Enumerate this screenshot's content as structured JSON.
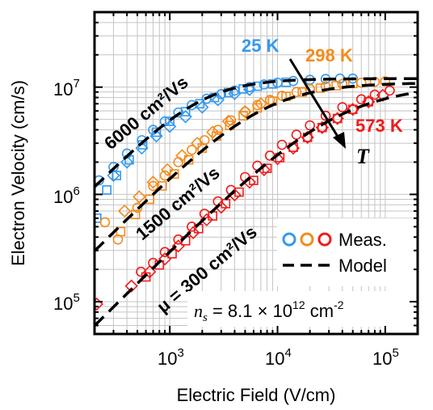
{
  "chart_data": {
    "type": "scatter",
    "x_scale": "log",
    "y_scale": "log",
    "xlim": [
      200,
      200000
    ],
    "ylim": [
      50000,
      50000000
    ],
    "xlabel": "Electric Field (V/cm)",
    "ylabel": "Electron Velocity (cm/s)",
    "x_ticks": [
      {
        "base": "10",
        "exp": "3",
        "value": 1000
      },
      {
        "base": "10",
        "exp": "4",
        "value": 10000
      },
      {
        "base": "10",
        "exp": "5",
        "value": 100000
      }
    ],
    "y_ticks": [
      {
        "base": "10",
        "exp": "5",
        "value": 100000
      },
      {
        "base": "10",
        "exp": "6",
        "value": 1000000
      },
      {
        "base": "10",
        "exp": "7",
        "value": 10000000
      }
    ],
    "grid": true,
    "series": [
      {
        "name": "25 K",
        "color": "#3399ee",
        "mobility_label": "6000 cm²/Vs",
        "model": {
          "mu": 6000,
          "vsat": 12000000,
          "beta": 1.5
        },
        "meas_circles": [
          [
            220,
            1350000
          ],
          [
            300,
            1800000
          ],
          [
            400,
            2400000
          ],
          [
            550,
            3200000
          ],
          [
            700,
            4000000
          ],
          [
            900,
            4800000
          ],
          [
            1200,
            5800000
          ],
          [
            1600,
            6800000
          ],
          [
            2200,
            7800000
          ],
          [
            3000,
            8600000
          ],
          [
            4000,
            9300000
          ],
          [
            5500,
            10000000
          ],
          [
            7500,
            10600000
          ],
          [
            10000,
            11000000
          ],
          [
            14000,
            11400000
          ],
          [
            20000,
            11700000
          ],
          [
            28000,
            11900000
          ],
          [
            38000,
            12000000
          ],
          [
            50000,
            12000000
          ]
        ],
        "meas_squares": [
          [
            210,
            600000
          ],
          [
            260,
            1100000
          ],
          [
            320,
            1500000
          ],
          [
            420,
            2100000
          ],
          [
            560,
            2900000
          ],
          [
            750,
            3800000
          ],
          [
            1000,
            4800000
          ],
          [
            1400,
            5900000
          ],
          [
            1900,
            7000000
          ],
          [
            2600,
            8000000
          ],
          [
            3500,
            8900000
          ],
          [
            4800,
            9600000
          ],
          [
            6500,
            10200000
          ],
          [
            9000,
            10700000
          ],
          [
            12000,
            11100000
          ]
        ],
        "meas_diamonds": [
          [
            300,
            1500000
          ],
          [
            400,
            2000000
          ],
          [
            550,
            2700000
          ],
          [
            750,
            3500000
          ],
          [
            1000,
            4300000
          ],
          [
            1400,
            5300000
          ],
          [
            2000,
            6500000
          ],
          [
            2800,
            7600000
          ],
          [
            4000,
            8700000
          ],
          [
            5500,
            9500000
          ]
        ]
      },
      {
        "name": "298 K",
        "color": "#f28c1c",
        "mobility_label": "1500 cm²/Vs",
        "model": {
          "mu": 1500,
          "vsat": 11000000,
          "beta": 1.2
        },
        "meas_circles": [
          [
            250,
            550000
          ],
          [
            330,
            380000
          ],
          [
            500,
            750000
          ],
          [
            700,
            1200000
          ],
          [
            900,
            1500000
          ],
          [
            1200,
            2000000
          ],
          [
            1600,
            2600000
          ],
          [
            2100,
            3200000
          ],
          [
            2800,
            4000000
          ],
          [
            3700,
            4900000
          ],
          [
            5000,
            5900000
          ],
          [
            6500,
            6800000
          ],
          [
            8500,
            7600000
          ],
          [
            11000,
            8300000
          ],
          [
            15000,
            9000000
          ],
          [
            20000,
            9600000
          ],
          [
            28000,
            10200000
          ],
          [
            40000,
            10700000
          ],
          [
            60000,
            11000000
          ],
          [
            80000,
            11200000
          ],
          [
            100000,
            11300000
          ]
        ],
        "meas_squares": [
          [
            350,
            450000
          ],
          [
            480,
            650000
          ],
          [
            650,
            900000
          ],
          [
            850,
            1200000
          ],
          [
            1100,
            1550000
          ],
          [
            1500,
            2100000
          ],
          [
            2000,
            2700000
          ],
          [
            2700,
            3500000
          ],
          [
            3600,
            4400000
          ],
          [
            4800,
            5400000
          ],
          [
            6500,
            6400000
          ],
          [
            9000,
            7400000
          ],
          [
            12000,
            8200000
          ],
          [
            17000,
            9000000
          ],
          [
            25000,
            9800000
          ],
          [
            35000,
            10300000
          ],
          [
            50000,
            10800000
          ]
        ],
        "meas_diamonds": [
          [
            380,
            700000
          ],
          [
            520,
            950000
          ],
          [
            700,
            1300000
          ],
          [
            950,
            1700000
          ],
          [
            1300,
            2300000
          ],
          [
            1800,
            3000000
          ],
          [
            2500,
            3800000
          ],
          [
            3500,
            4800000
          ],
          [
            5000,
            5900000
          ],
          [
            7000,
            7000000
          ]
        ]
      },
      {
        "name": "573 K",
        "color": "#ee1c1c",
        "mobility_label": "μ = 300 cm²/Vs",
        "model": {
          "mu": 300,
          "vsat": 10500000,
          "beta": 1.0
        },
        "meas_circles": [
          [
            540,
            190000
          ],
          [
            700,
            230000
          ],
          [
            900,
            290000
          ],
          [
            1200,
            380000
          ],
          [
            1600,
            500000
          ],
          [
            2100,
            660000
          ],
          [
            2800,
            860000
          ],
          [
            3700,
            1100000
          ],
          [
            5000,
            1450000
          ],
          [
            6500,
            1850000
          ],
          [
            8500,
            2300000
          ],
          [
            11000,
            2900000
          ],
          [
            15000,
            3600000
          ],
          [
            20000,
            4400000
          ],
          [
            28000,
            5400000
          ],
          [
            40000,
            6500000
          ],
          [
            60000,
            7700000
          ],
          [
            80000,
            8500000
          ],
          [
            110000,
            9300000
          ]
        ],
        "meas_squares": [
          [
            600,
            170000
          ],
          [
            800,
            220000
          ],
          [
            1050,
            280000
          ],
          [
            1400,
            370000
          ],
          [
            1850,
            480000
          ],
          [
            2500,
            630000
          ],
          [
            3300,
            820000
          ],
          [
            4400,
            1050000
          ],
          [
            6000,
            1350000
          ],
          [
            8000,
            1750000
          ],
          [
            10500,
            2200000
          ],
          [
            14000,
            2750000
          ],
          [
            19000,
            3400000
          ],
          [
            26000,
            4200000
          ],
          [
            36000,
            5100000
          ],
          [
            50000,
            6200000
          ],
          [
            70000,
            7300000
          ]
        ],
        "meas_diamonds": [
          [
            210,
            95000
          ],
          [
            440,
            140000
          ],
          [
            650,
            190000
          ],
          [
            900,
            250000
          ],
          [
            1200,
            330000
          ],
          [
            1650,
            440000
          ],
          [
            2200,
            580000
          ],
          [
            3000,
            760000
          ],
          [
            4000,
            990000
          ],
          [
            5500,
            1300000
          ],
          [
            7500,
            1700000
          ],
          [
            10000,
            2150000
          ],
          [
            14000,
            2700000
          ],
          [
            19000,
            3400000
          ],
          [
            26000,
            4200000
          ],
          [
            36000,
            5100000
          ],
          [
            50000,
            6200000
          ],
          [
            70000,
            7300000
          ],
          [
            95000,
            8400000
          ]
        ]
      }
    ],
    "trend_label": "T",
    "legend": {
      "position": "bottom-right",
      "meas_label": "Meas.",
      "model_label": "Model"
    },
    "annotation": {
      "sym": "n",
      "sub": "s",
      "mid": " = 8.1 × 10",
      "exp": "12",
      "unit": " cm",
      "unit_exp": "-2"
    }
  }
}
